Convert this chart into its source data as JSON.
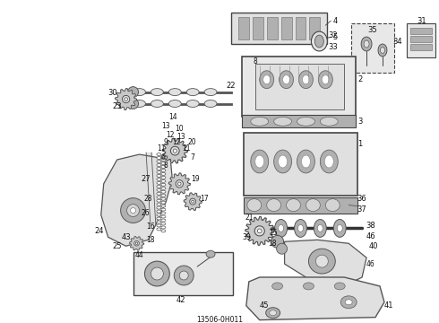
{
  "title": "13506-0H011",
  "background_color": "#ffffff",
  "figsize": [
    4.9,
    3.6
  ],
  "dpi": 100,
  "line_color": "#444444",
  "text_color": "#111111",
  "font_size": 6.5
}
